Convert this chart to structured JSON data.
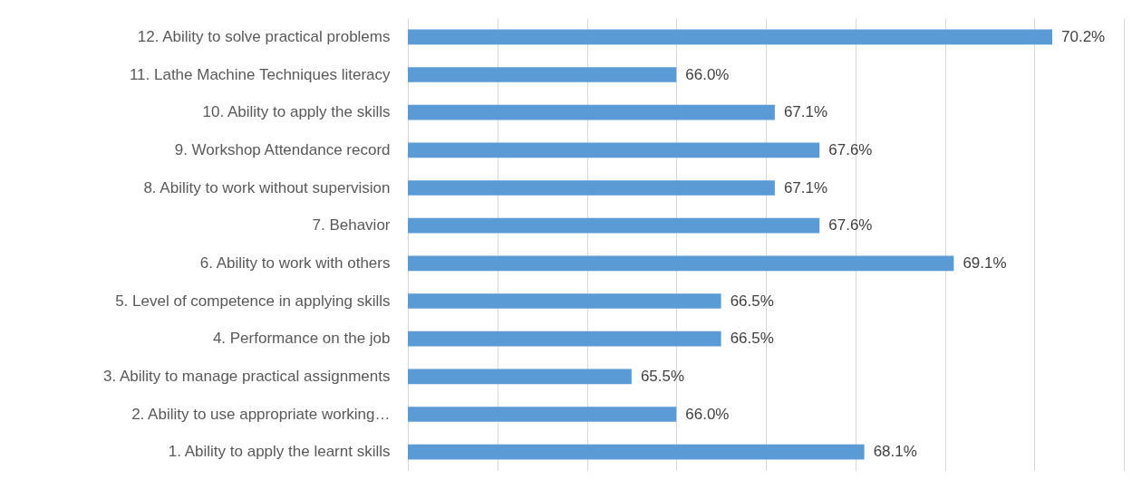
{
  "chart_data": {
    "type": "bar",
    "orientation": "horizontal",
    "categories": [
      "12. Ability to solve practical problems",
      "11. Lathe Machine Techniques literacy",
      "10. Ability to apply the skills",
      "9. Workshop Attendance record",
      "8. Ability to work without supervision",
      "7. Behavior",
      "6. Ability to work with others",
      "5.  Level of competence in applying skills",
      "4.  Performance on the job",
      "3. Ability to manage practical assignments",
      "2. Ability to use appropriate working…",
      "1. Ability to apply the learnt skills"
    ],
    "values": [
      70.2,
      66.0,
      67.1,
      67.6,
      67.1,
      67.6,
      69.1,
      66.5,
      66.5,
      65.5,
      66.0,
      68.1
    ],
    "value_labels": [
      "70.2%",
      "66.0%",
      "67.1%",
      "67.6%",
      "67.1%",
      "67.6%",
      "69.1%",
      "66.5%",
      "66.5%",
      "65.5%",
      "66.0%",
      "68.1%"
    ],
    "color": "#5b9bd5",
    "xlim": [
      63,
      71
    ],
    "xticks": [
      {
        "value": 63,
        "label": null
      },
      {
        "value": 64,
        "label": null
      },
      {
        "value": 65,
        "label": null
      },
      {
        "value": 66,
        "label": null
      },
      {
        "value": 67,
        "label": null
      },
      {
        "value": 68,
        "label": null
      },
      {
        "value": 69,
        "label": null
      },
      {
        "value": 70,
        "label": null
      },
      {
        "value": 71,
        "label": null
      }
    ],
    "grid": "x",
    "tick_labels": "y"
  }
}
